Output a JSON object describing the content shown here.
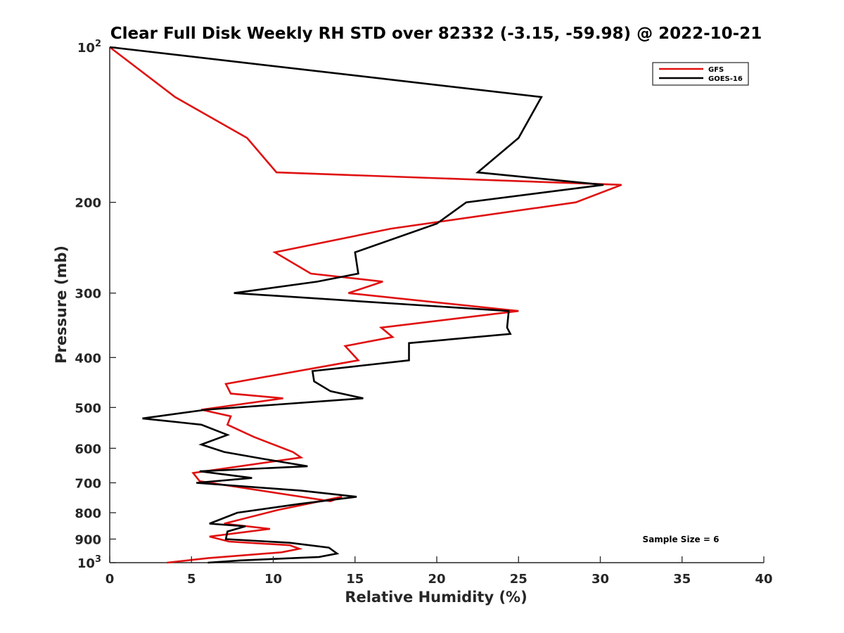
{
  "chart_data": {
    "type": "line",
    "title": "Clear Full Disk Weekly RH STD over 82332 (-3.15, -59.98) @ 2022-10-21",
    "xlabel": "Relative Humidity (%)",
    "ylabel": "Pressure (mb)",
    "xlim": [
      0,
      40
    ],
    "ylim": [
      1000,
      100
    ],
    "y_scale": "log",
    "y_reversed": true,
    "x_ticks": [
      "0",
      "5",
      "10",
      "15",
      "20",
      "25",
      "30",
      "35",
      "40"
    ],
    "x_tick_values": [
      0,
      5,
      10,
      15,
      20,
      25,
      30,
      35,
      40
    ],
    "y_ticks": [
      {
        "value": 100,
        "base": "10",
        "exp": "2"
      },
      {
        "value": 200,
        "label": "200"
      },
      {
        "value": 300,
        "label": "300"
      },
      {
        "value": 400,
        "label": "400"
      },
      {
        "value": 500,
        "label": "500"
      },
      {
        "value": 600,
        "label": "600"
      },
      {
        "value": 700,
        "label": "700"
      },
      {
        "value": 800,
        "label": "800"
      },
      {
        "value": 900,
        "label": "900"
      },
      {
        "value": 1000,
        "base": "10",
        "exp": "3"
      }
    ],
    "grid": false,
    "legend_position": "top-right",
    "annotation": "Sample Size = 6",
    "series": [
      {
        "name": "GFS",
        "color": "#e01010",
        "points": [
          {
            "x": 0.0,
            "y": 100
          },
          {
            "x": 4.0,
            "y": 125
          },
          {
            "x": 8.4,
            "y": 150
          },
          {
            "x": 10.2,
            "y": 175
          },
          {
            "x": 31.3,
            "y": 185
          },
          {
            "x": 28.5,
            "y": 200
          },
          {
            "x": 17.2,
            "y": 225
          },
          {
            "x": 10.1,
            "y": 250
          },
          {
            "x": 12.3,
            "y": 275
          },
          {
            "x": 16.7,
            "y": 285
          },
          {
            "x": 14.6,
            "y": 300
          },
          {
            "x": 25.0,
            "y": 325
          },
          {
            "x": 16.6,
            "y": 350
          },
          {
            "x": 17.3,
            "y": 365
          },
          {
            "x": 14.4,
            "y": 380
          },
          {
            "x": 15.2,
            "y": 405
          },
          {
            "x": 7.1,
            "y": 450
          },
          {
            "x": 7.4,
            "y": 470
          },
          {
            "x": 10.6,
            "y": 480
          },
          {
            "x": 5.6,
            "y": 505
          },
          {
            "x": 7.4,
            "y": 520
          },
          {
            "x": 7.2,
            "y": 540
          },
          {
            "x": 8.8,
            "y": 570
          },
          {
            "x": 11.2,
            "y": 610
          },
          {
            "x": 11.7,
            "y": 625
          },
          {
            "x": 5.1,
            "y": 670
          },
          {
            "x": 5.5,
            "y": 695
          },
          {
            "x": 13.5,
            "y": 760
          },
          {
            "x": 14.2,
            "y": 745
          },
          {
            "x": 10.3,
            "y": 790
          },
          {
            "x": 7.0,
            "y": 840
          },
          {
            "x": 9.8,
            "y": 860
          },
          {
            "x": 6.1,
            "y": 890
          },
          {
            "x": 7.3,
            "y": 910
          },
          {
            "x": 11.0,
            "y": 925
          },
          {
            "x": 11.6,
            "y": 940
          },
          {
            "x": 10.5,
            "y": 955
          },
          {
            "x": 6.0,
            "y": 980
          },
          {
            "x": 3.5,
            "y": 1000
          }
        ]
      },
      {
        "name": "GOES-16",
        "color": "#000000",
        "points": [
          {
            "x": 0.0,
            "y": 100
          },
          {
            "x": 26.4,
            "y": 125
          },
          {
            "x": 25.0,
            "y": 150
          },
          {
            "x": 22.5,
            "y": 175
          },
          {
            "x": 30.2,
            "y": 185
          },
          {
            "x": 21.8,
            "y": 200
          },
          {
            "x": 20.0,
            "y": 220
          },
          {
            "x": 15.0,
            "y": 250
          },
          {
            "x": 15.2,
            "y": 275
          },
          {
            "x": 12.7,
            "y": 285
          },
          {
            "x": 7.6,
            "y": 300
          },
          {
            "x": 24.4,
            "y": 325
          },
          {
            "x": 24.3,
            "y": 350
          },
          {
            "x": 24.5,
            "y": 360
          },
          {
            "x": 18.3,
            "y": 375
          },
          {
            "x": 18.3,
            "y": 405
          },
          {
            "x": 12.4,
            "y": 425
          },
          {
            "x": 12.5,
            "y": 445
          },
          {
            "x": 13.5,
            "y": 465
          },
          {
            "x": 15.5,
            "y": 480
          },
          {
            "x": 5.9,
            "y": 505
          },
          {
            "x": 2.0,
            "y": 525
          },
          {
            "x": 5.6,
            "y": 540
          },
          {
            "x": 7.2,
            "y": 565
          },
          {
            "x": 5.6,
            "y": 590
          },
          {
            "x": 7.0,
            "y": 610
          },
          {
            "x": 9.5,
            "y": 630
          },
          {
            "x": 12.1,
            "y": 650
          },
          {
            "x": 5.5,
            "y": 665
          },
          {
            "x": 8.7,
            "y": 685
          },
          {
            "x": 5.3,
            "y": 700
          },
          {
            "x": 11.7,
            "y": 725
          },
          {
            "x": 15.1,
            "y": 745
          },
          {
            "x": 11.5,
            "y": 770
          },
          {
            "x": 7.8,
            "y": 800
          },
          {
            "x": 6.1,
            "y": 840
          },
          {
            "x": 8.3,
            "y": 850
          },
          {
            "x": 7.2,
            "y": 870
          },
          {
            "x": 7.1,
            "y": 900
          },
          {
            "x": 11.0,
            "y": 915
          },
          {
            "x": 13.4,
            "y": 935
          },
          {
            "x": 13.9,
            "y": 960
          },
          {
            "x": 12.8,
            "y": 975
          },
          {
            "x": 8.0,
            "y": 990
          },
          {
            "x": 6.0,
            "y": 1000
          }
        ]
      }
    ]
  }
}
